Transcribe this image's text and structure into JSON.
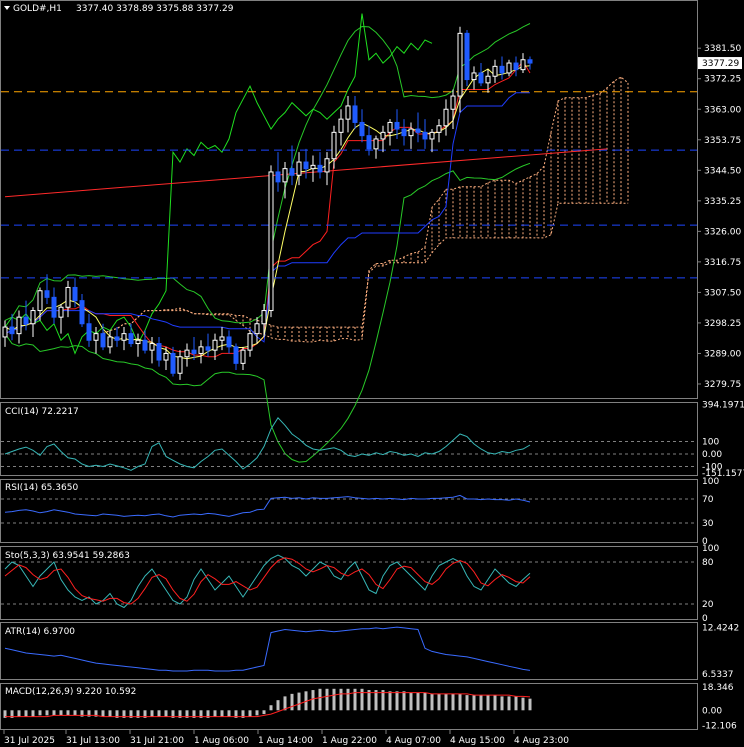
{
  "header": {
    "symbol": "GOLD#,H1",
    "ohlc": "3377.40 3378.89 3375.88 3377.29"
  },
  "colors": {
    "bull": "#ffffff",
    "bear": "#1f5bff",
    "bear_fill": "#1f5bff",
    "bb": "#28c828",
    "env_red": "#ff2020",
    "ma_yellow": "#ffff66",
    "ma_blue": "#1e3cff",
    "tenkan": "#ff2020",
    "kijun": "#1f3dff",
    "cloud": "#ffb080",
    "chikou": "#20e020",
    "level_orange": "#ffa500",
    "level_blue": "#1e46ff",
    "trend": "#ff2a2a",
    "indicator": "#37b6b6",
    "sig_red": "#ff2020",
    "macd_hist": "#c0c0c0",
    "grid": "#808080"
  },
  "chart_data": [
    {
      "name": "GOLD#,H1",
      "type": "candlestick",
      "ylim": [
        3275.5,
        3395.5
      ],
      "price_ticks": [
        "3381.50",
        "3372.25",
        "3363.00",
        "3353.75",
        "3344.50",
        "3335.25",
        "3326.00",
        "3316.75",
        "3307.50",
        "3298.25",
        "3289.00",
        "3279.75"
      ],
      "current_price_label": "3377.29",
      "levels": [
        {
          "value": 3368.3,
          "style": "orange-dash"
        },
        {
          "value": 3350.6,
          "style": "blue-dash"
        },
        {
          "value": 3327.9,
          "style": "blue-dash"
        },
        {
          "value": 3311.9,
          "style": "blue-dash"
        }
      ],
      "trendline": [
        [
          0,
          3336.5
        ],
        [
          86,
          3351
        ]
      ],
      "candles": [
        [
          3294,
          3299,
          3291,
          3297
        ],
        [
          3297,
          3301,
          3293,
          3295
        ],
        [
          3295,
          3302,
          3292,
          3300
        ],
        [
          3300,
          3305,
          3296,
          3298
        ],
        [
          3298,
          3303,
          3294,
          3302
        ],
        [
          3302,
          3309,
          3299,
          3308
        ],
        [
          3308,
          3313,
          3304,
          3306
        ],
        [
          3306,
          3309,
          3298,
          3300
        ],
        [
          3300,
          3304,
          3295,
          3303
        ],
        [
          3303,
          3311,
          3300,
          3309
        ],
        [
          3309,
          3312,
          3303,
          3305
        ],
        [
          3305,
          3307,
          3297,
          3298
        ],
        [
          3298,
          3301,
          3291,
          3293
        ],
        [
          3293,
          3297,
          3289,
          3295
        ],
        [
          3295,
          3298,
          3290,
          3291
        ],
        [
          3291,
          3296,
          3289,
          3294
        ],
        [
          3294,
          3297,
          3291,
          3293
        ],
        [
          3293,
          3297,
          3290,
          3295
        ],
        [
          3295,
          3298,
          3291,
          3292
        ],
        [
          3292,
          3295,
          3288,
          3293
        ],
        [
          3293,
          3296,
          3289,
          3290
        ],
        [
          3290,
          3294,
          3286,
          3292
        ],
        [
          3292,
          3294,
          3285,
          3287
        ],
        [
          3287,
          3291,
          3284,
          3289
        ],
        [
          3289,
          3291,
          3282,
          3283
        ],
        [
          3283,
          3290,
          3281,
          3288
        ],
        [
          3288,
          3292,
          3285,
          3290
        ],
        [
          3290,
          3294,
          3287,
          3289
        ],
        [
          3289,
          3293,
          3286,
          3291
        ],
        [
          3291,
          3295,
          3288,
          3290
        ],
        [
          3290,
          3295,
          3287,
          3293
        ],
        [
          3293,
          3297,
          3290,
          3294
        ],
        [
          3294,
          3296,
          3289,
          3291
        ],
        [
          3291,
          3292,
          3284,
          3286
        ],
        [
          3286,
          3291,
          3284,
          3290
        ],
        [
          3290,
          3296,
          3288,
          3295
        ],
        [
          3295,
          3300,
          3292,
          3298
        ],
        [
          3298,
          3304,
          3294,
          3302
        ],
        [
          3302,
          3346,
          3300,
          3344
        ],
        [
          3344,
          3350,
          3338,
          3341
        ],
        [
          3341,
          3347,
          3336,
          3345
        ],
        [
          3345,
          3352,
          3340,
          3343
        ],
        [
          3343,
          3350,
          3340,
          3347
        ],
        [
          3347,
          3351,
          3342,
          3345
        ],
        [
          3345,
          3349,
          3341,
          3346
        ],
        [
          3346,
          3350,
          3342,
          3344
        ],
        [
          3344,
          3350,
          3340,
          3348
        ],
        [
          3348,
          3358,
          3345,
          3356
        ],
        [
          3356,
          3363,
          3352,
          3360
        ],
        [
          3360,
          3367,
          3356,
          3364
        ],
        [
          3364,
          3367,
          3357,
          3359
        ],
        [
          3359,
          3363,
          3353,
          3355
        ],
        [
          3355,
          3358,
          3349,
          3351
        ],
        [
          3351,
          3355,
          3348,
          3354
        ],
        [
          3354,
          3358,
          3350,
          3356
        ],
        [
          3356,
          3360,
          3352,
          3359
        ],
        [
          3359,
          3363,
          3354,
          3357
        ],
        [
          3357,
          3360,
          3352,
          3355
        ],
        [
          3355,
          3359,
          3351,
          3357
        ],
        [
          3357,
          3362,
          3353,
          3356
        ],
        [
          3356,
          3360,
          3351,
          3354
        ],
        [
          3354,
          3357,
          3350,
          3356
        ],
        [
          3356,
          3360,
          3353,
          3358
        ],
        [
          3358,
          3366,
          3355,
          3363
        ],
        [
          3363,
          3369,
          3357,
          3367
        ],
        [
          3367,
          3388,
          3362,
          3386
        ],
        [
          3386,
          3387,
          3370,
          3372
        ],
        [
          3372,
          3376,
          3369,
          3374
        ],
        [
          3374,
          3377,
          3370,
          3371
        ],
        [
          3371,
          3375,
          3368,
          3373
        ],
        [
          3373,
          3378,
          3371,
          3376
        ],
        [
          3376,
          3379,
          3372,
          3374
        ],
        [
          3374,
          3378,
          3373,
          3377
        ],
        [
          3377,
          3379,
          3373,
          3375
        ],
        [
          3375,
          3380,
          3374,
          3378
        ],
        [
          3378,
          3379,
          3375,
          3377
        ]
      ],
      "x_ticks": [
        "31 Jul 2025",
        "31 Jul 13:00",
        "31 Jul 21:00",
        "1 Aug 06:00",
        "1 Aug 14:00",
        "1 Aug 22:00",
        "4 Aug 07:00",
        "4 Aug 15:00",
        "4 Aug 23:00"
      ]
    },
    {
      "name": "CCI(14)",
      "type": "line",
      "label": "CCI(14) 72.2217",
      "ylim": [
        -160,
        400
      ],
      "ticks": [
        "394.1971",
        "100",
        "0.00",
        "-100",
        "-151.1577"
      ],
      "levels": [
        100,
        0,
        -100
      ],
      "values": [
        0,
        20,
        40,
        55,
        30,
        -10,
        60,
        80,
        20,
        -30,
        -40,
        -80,
        -100,
        -90,
        -100,
        -80,
        -95,
        -110,
        -130,
        -100,
        -80,
        60,
        90,
        -20,
        -50,
        -80,
        -100,
        -110,
        -60,
        -20,
        30,
        40,
        -10,
        -60,
        -120,
        -80,
        -30,
        60,
        200,
        290,
        230,
        160,
        120,
        70,
        40,
        30,
        40,
        50,
        30,
        -10,
        -20,
        0,
        -10,
        10,
        -5,
        20,
        10,
        -10,
        0,
        -20,
        10,
        0,
        20,
        60,
        110,
        160,
        140,
        80,
        40,
        10,
        0,
        20,
        10,
        30,
        40,
        72
      ]
    },
    {
      "name": "RSI(14)",
      "type": "line",
      "label": "RSI(14) 65.3650",
      "ylim": [
        0,
        100
      ],
      "ticks": [
        "100",
        "70",
        "30",
        "0"
      ],
      "levels": [
        70,
        30
      ],
      "values": [
        48,
        49,
        51,
        52,
        50,
        47,
        49,
        52,
        50,
        48,
        45,
        44,
        43,
        42,
        45,
        44,
        43,
        41,
        42,
        43,
        42,
        44,
        45,
        42,
        40,
        43,
        44,
        45,
        44,
        46,
        45,
        43,
        41,
        44,
        47,
        48,
        52,
        53,
        71,
        72,
        73,
        71,
        72,
        70,
        72,
        71,
        71,
        72,
        73,
        74,
        72,
        71,
        70,
        71,
        70,
        71,
        70,
        69,
        71,
        70,
        70,
        71,
        71,
        72,
        73,
        76,
        70,
        70,
        69,
        70,
        69,
        69,
        68,
        70,
        68,
        65
      ]
    },
    {
      "name": "Stoch(5,3,3)",
      "type": "line",
      "label": "Sto(5,3,3) 63.9541 59.2863",
      "ylim": [
        0,
        100
      ],
      "ticks": [
        "100",
        "80",
        "20",
        "0"
      ],
      "levels": [
        80,
        20
      ],
      "main": [
        70,
        80,
        75,
        60,
        45,
        60,
        70,
        80,
        55,
        40,
        30,
        25,
        30,
        20,
        25,
        35,
        20,
        15,
        25,
        45,
        60,
        70,
        55,
        40,
        25,
        20,
        30,
        55,
        70,
        55,
        40,
        50,
        60,
        45,
        30,
        45,
        60,
        75,
        85,
        90,
        85,
        75,
        70,
        60,
        70,
        80,
        75,
        60,
        55,
        70,
        80,
        60,
        40,
        35,
        60,
        75,
        80,
        70,
        60,
        50,
        40,
        60,
        75,
        80,
        85,
        80,
        60,
        45,
        40,
        55,
        70,
        60,
        50,
        45,
        55,
        64
      ],
      "signal": [
        60,
        68,
        76,
        72,
        62,
        55,
        58,
        68,
        70,
        58,
        42,
        32,
        28,
        26,
        24,
        28,
        28,
        22,
        20,
        28,
        42,
        58,
        62,
        56,
        40,
        28,
        24,
        34,
        52,
        62,
        56,
        48,
        48,
        52,
        46,
        40,
        44,
        58,
        72,
        82,
        86,
        84,
        78,
        70,
        66,
        70,
        75,
        72,
        64,
        60,
        66,
        70,
        62,
        48,
        42,
        55,
        70,
        74,
        72,
        62,
        52,
        48,
        56,
        70,
        78,
        82,
        78,
        66,
        50,
        46,
        55,
        62,
        58,
        52,
        50,
        59
      ]
    },
    {
      "name": "ATR(14)",
      "type": "line",
      "label": "ATR(14) 6.9700",
      "ylim": [
        6.0,
        12.9
      ],
      "ticks": [
        "12.4242",
        "6.5337"
      ],
      "values": [
        9.8,
        9.6,
        9.4,
        9.2,
        9.1,
        9.0,
        8.9,
        8.8,
        8.9,
        8.7,
        8.5,
        8.3,
        8.1,
        7.9,
        7.8,
        7.7,
        7.6,
        7.5,
        7.4,
        7.3,
        7.2,
        7.1,
        7.0,
        7.0,
        6.9,
        6.9,
        6.9,
        7.0,
        7.0,
        7.0,
        6.9,
        6.9,
        6.9,
        7.0,
        7.0,
        7.2,
        7.4,
        7.6,
        11.8,
        12.0,
        12.2,
        12.1,
        12.0,
        11.9,
        12.0,
        12.1,
        12.0,
        11.9,
        12.0,
        12.1,
        12.2,
        12.3,
        12.3,
        12.4,
        12.3,
        12.4,
        12.5,
        12.4,
        12.3,
        12.2,
        9.8,
        9.4,
        9.2,
        9.0,
        8.9,
        8.8,
        8.7,
        8.5,
        8.3,
        8.1,
        7.9,
        7.7,
        7.5,
        7.3,
        7.1,
        6.97
      ]
    },
    {
      "name": "MACD(12,26,9)",
      "type": "histogram",
      "label": "MACD(12,26,9) 9.220 10.592",
      "ylim": [
        -14,
        20
      ],
      "ticks": [
        "18.346",
        "0.00",
        "-12.106"
      ],
      "values": [
        -6,
        -6,
        -5,
        -5,
        -5,
        -4,
        -4,
        -4,
        -4,
        -4,
        -4,
        -5,
        -5,
        -5,
        -5,
        -5,
        -6,
        -6,
        -6,
        -6,
        -6,
        -5,
        -5,
        -5,
        -6,
        -6,
        -6,
        -6,
        -6,
        -6,
        -5,
        -5,
        -5,
        -6,
        -6,
        -5,
        -4,
        -3,
        4,
        8,
        11,
        13,
        14,
        15,
        16,
        17,
        17,
        17,
        17,
        17,
        17,
        17,
        16,
        16,
        16,
        15,
        15,
        15,
        14,
        14,
        14,
        13,
        13,
        13,
        13,
        13,
        12,
        12,
        12,
        12,
        12,
        11,
        11,
        11,
        10,
        9.2
      ],
      "signal": [
        -5,
        -5,
        -5,
        -5,
        -5,
        -5,
        -5,
        -4,
        -4,
        -4,
        -4,
        -4,
        -4,
        -4,
        -5,
        -5,
        -5,
        -5,
        -5,
        -5,
        -5,
        -5,
        -5,
        -5,
        -5,
        -5,
        -5,
        -5,
        -5,
        -5,
        -5,
        -5,
        -5,
        -5,
        -5,
        -5,
        -5,
        -4,
        -3,
        -1,
        1,
        3,
        5,
        7,
        9,
        10,
        11,
        12,
        13,
        13,
        14,
        14,
        14,
        14,
        14,
        14,
        14,
        14,
        14,
        14,
        14,
        13,
        13,
        13,
        13,
        13,
        13,
        12,
        12,
        12,
        12,
        12,
        12,
        11,
        11,
        10.6
      ]
    }
  ]
}
